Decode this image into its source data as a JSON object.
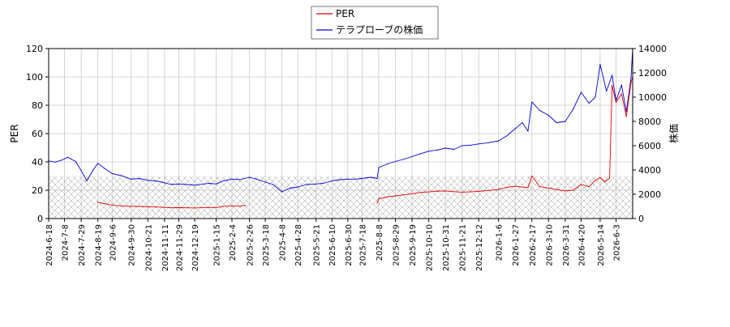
{
  "chart_data": {
    "type": "line",
    "legend": {
      "placement": "top-center",
      "entries": [
        {
          "label": "PER",
          "color": "#dd0000"
        },
        {
          "label": "テラプローブの株価",
          "color": "#0000cc"
        }
      ]
    },
    "xlabel": "",
    "ylabel_left": "PER",
    "ylabel_right": "株価",
    "ylim_left": [
      0,
      120
    ],
    "ylim_right": [
      0,
      14000
    ],
    "yticks_left": [
      "0",
      "20",
      "40",
      "60",
      "80",
      "100",
      "120"
    ],
    "yticks_right": [
      "0",
      "2000",
      "4000",
      "6000",
      "8000",
      "10000",
      "12000",
      "14000"
    ],
    "xlim": [
      "2024-06-18",
      "2026-06-24"
    ],
    "xticks": [
      "2024-6-18",
      "2024-7-8",
      "2024-7-29",
      "2024-8-19",
      "2024-9-6",
      "2024-9-30",
      "2024-10-21",
      "2024-11-11",
      "2024-11-29",
      "2024-12-19",
      "2025-1-15",
      "2025-2-4",
      "2025-2-26",
      "2025-3-18",
      "2025-4-8",
      "2025-4-28",
      "2025-5-21",
      "2025-6-10",
      "2025-6-30",
      "2025-7-18",
      "2025-8-8",
      "2025-8-29",
      "2025-9-19",
      "2025-10-10",
      "2025-10-31",
      "2025-11-21",
      "2025-12-12",
      "2026-1-6",
      "2026-1-27",
      "2026-2-17",
      "2026-3-10",
      "2026-3-31",
      "2026-4-20",
      "2026-5-14",
      "2026-6-3"
    ],
    "grid": true,
    "hatched_band_left": [
      0,
      30
    ],
    "series": [
      {
        "name": "テラプローブの株価",
        "axis": "right",
        "color": "#0000cc",
        "x": [
          "2024-06-18",
          "2024-06-26",
          "2024-07-04",
          "2024-07-12",
          "2024-07-22",
          "2024-07-29",
          "2024-08-05",
          "2024-08-13",
          "2024-08-19",
          "2024-08-27",
          "2024-09-06",
          "2024-09-17",
          "2024-09-30",
          "2024-10-10",
          "2024-10-21",
          "2024-10-31",
          "2024-11-11",
          "2024-11-20",
          "2024-11-29",
          "2024-12-10",
          "2024-12-19",
          "2025-01-06",
          "2025-01-15",
          "2025-01-24",
          "2025-02-04",
          "2025-02-14",
          "2025-02-26",
          "2025-03-07",
          "2025-03-18",
          "2025-03-28",
          "2025-04-08",
          "2025-04-18",
          "2025-04-28",
          "2025-05-09",
          "2025-05-21",
          "2025-05-30",
          "2025-06-10",
          "2025-06-20",
          "2025-06-30",
          "2025-07-10",
          "2025-07-18",
          "2025-07-29",
          "2025-08-06",
          "2025-08-08",
          "2025-08-19",
          "2025-08-29",
          "2025-09-09",
          "2025-09-19",
          "2025-09-30",
          "2025-10-10",
          "2025-10-21",
          "2025-10-31",
          "2025-11-11",
          "2025-11-21",
          "2025-12-02",
          "2025-12-12",
          "2025-12-24",
          "2026-01-06",
          "2026-01-16",
          "2026-01-27",
          "2026-02-05",
          "2026-02-12",
          "2026-02-17",
          "2026-02-27",
          "2026-03-10",
          "2026-03-20",
          "2026-03-31",
          "2026-04-10",
          "2026-04-20",
          "2026-04-30",
          "2026-05-08",
          "2026-05-14",
          "2026-05-22",
          "2026-05-29",
          "2026-06-03",
          "2026-06-10",
          "2026-06-16",
          "2026-06-22",
          "2026-06-24"
        ],
        "values": [
          4750,
          4650,
          4800,
          5050,
          4700,
          3950,
          3100,
          4000,
          4550,
          4150,
          3700,
          3550,
          3250,
          3300,
          3150,
          3100,
          2950,
          2800,
          2850,
          2800,
          2750,
          2900,
          2850,
          3100,
          3250,
          3200,
          3400,
          3250,
          3000,
          2800,
          2200,
          2500,
          2600,
          2800,
          2850,
          2900,
          3100,
          3200,
          3250,
          3250,
          3300,
          3400,
          3300,
          4200,
          4500,
          4700,
          4900,
          5100,
          5350,
          5550,
          5650,
          5800,
          5700,
          6000,
          6050,
          6150,
          6250,
          6400,
          6800,
          7400,
          7900,
          7200,
          9600,
          8900,
          8500,
          7900,
          8000,
          9000,
          10400,
          9500,
          10000,
          12700,
          10500,
          11800,
          9700,
          11000,
          8800,
          11600,
          14000
        ]
      },
      {
        "name": "PER",
        "axis": "left",
        "color": "#dd0000",
        "segments": [
          {
            "x": [
              "2024-08-19",
              "2024-08-27",
              "2024-09-06",
              "2024-09-17",
              "2024-09-30",
              "2024-10-10",
              "2024-10-21",
              "2024-10-31",
              "2024-11-11",
              "2024-11-20",
              "2024-11-29",
              "2024-12-10",
              "2024-12-19",
              "2025-01-06",
              "2025-01-15",
              "2025-01-24",
              "2025-02-04",
              "2025-02-14",
              "2025-02-21"
            ],
            "values": [
              11.5,
              10.5,
              9.5,
              9.0,
              8.5,
              8.6,
              8.3,
              8.2,
              7.9,
              7.6,
              7.7,
              7.6,
              7.5,
              7.9,
              7.8,
              8.5,
              8.9,
              8.7,
              9.3
            ]
          },
          {
            "x": [
              "2025-08-06",
              "2025-08-08",
              "2025-08-19",
              "2025-08-29",
              "2025-09-09",
              "2025-09-19",
              "2025-09-30",
              "2025-10-10",
              "2025-10-21",
              "2025-10-31",
              "2025-11-11",
              "2025-11-21",
              "2025-12-02",
              "2025-12-12",
              "2025-12-24",
              "2026-01-06",
              "2026-01-16",
              "2026-01-27",
              "2026-02-05",
              "2026-02-12",
              "2026-02-17",
              "2026-02-27",
              "2026-03-10",
              "2026-03-20",
              "2026-03-31",
              "2026-04-10",
              "2026-04-20",
              "2026-04-30",
              "2026-05-08",
              "2026-05-14",
              "2026-05-20",
              "2026-05-22",
              "2026-05-26",
              "2026-05-29",
              "2026-06-03",
              "2026-06-10",
              "2026-06-16",
              "2026-06-22",
              "2026-06-24"
            ],
            "values": [
              11.0,
              14.0,
              15.3,
              16.0,
              16.8,
              17.5,
              18.5,
              18.8,
              19.3,
              19.5,
              19.0,
              18.6,
              18.9,
              19.2,
              19.8,
              20.5,
              22.0,
              22.8,
              22.2,
              21.8,
              30.0,
              22.5,
              21.5,
              20.5,
              19.5,
              20.0,
              24.0,
              22.5,
              27.0,
              29.0,
              26.0,
              27.0,
              28.5,
              94.0,
              82.0,
              88.0,
              72.0,
              96.0,
              100.0
            ]
          }
        ]
      }
    ]
  }
}
